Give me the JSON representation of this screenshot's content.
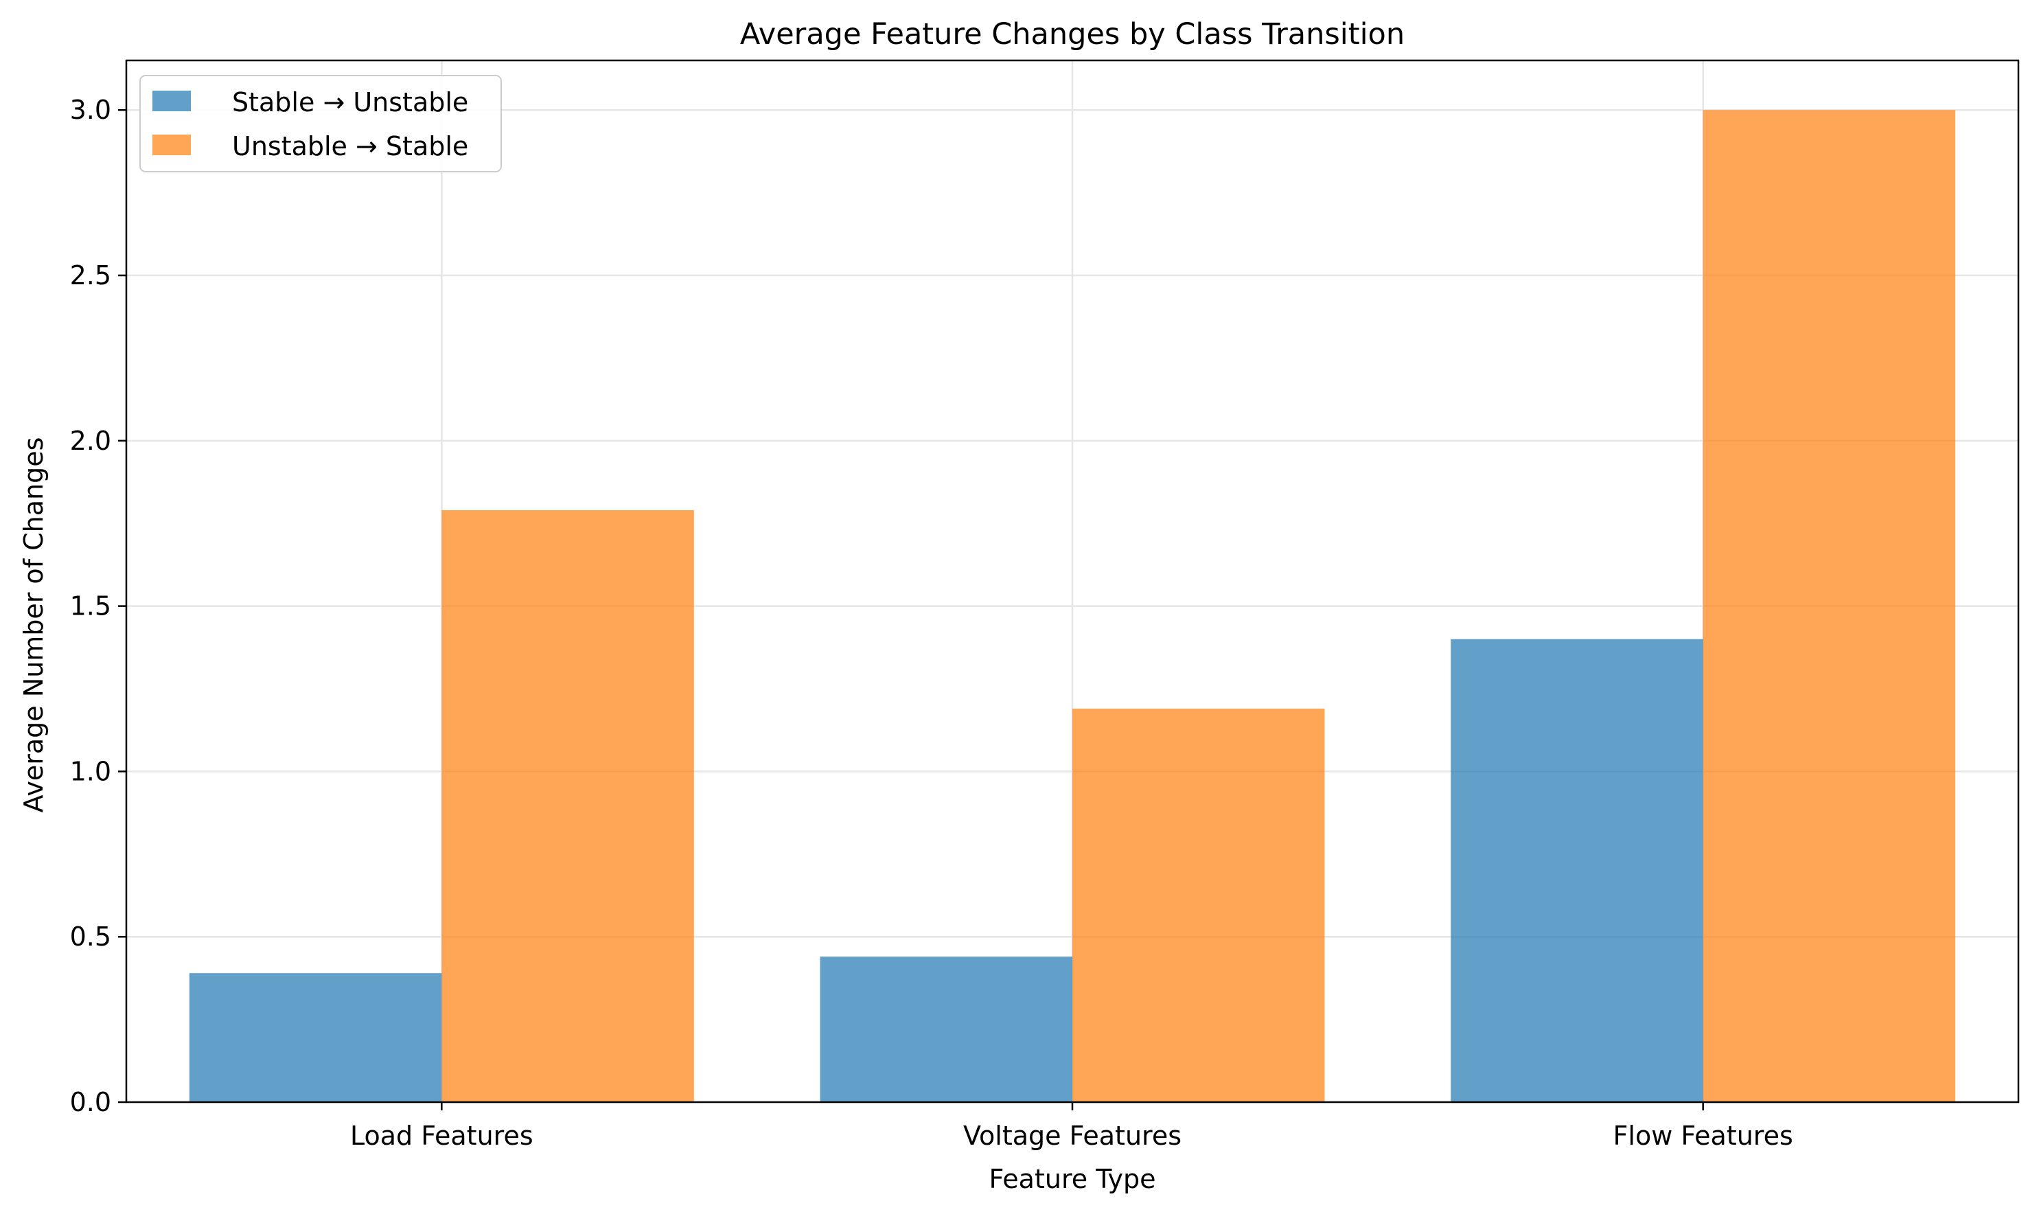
{
  "chart_data": {
    "type": "bar",
    "title": "Average Feature Changes by Class Transition",
    "xlabel": "Feature Type",
    "ylabel": "Average Number of Changes",
    "categories": [
      "Load Features",
      "Voltage Features",
      "Flow Features"
    ],
    "series": [
      {
        "name": "Stable → Unstable",
        "color": "#1f77b4",
        "values": [
          0.39,
          0.44,
          1.4
        ]
      },
      {
        "name": "Unstable → Stable",
        "color": "#ff7f0e",
        "values": [
          1.79,
          1.19,
          3.0
        ]
      }
    ],
    "ylim": [
      0,
      3.15
    ],
    "yticks": [
      "0.0",
      "0.5",
      "1.0",
      "1.5",
      "2.0",
      "2.5",
      "3.0"
    ],
    "grid": true,
    "legend_position": "top-left"
  }
}
